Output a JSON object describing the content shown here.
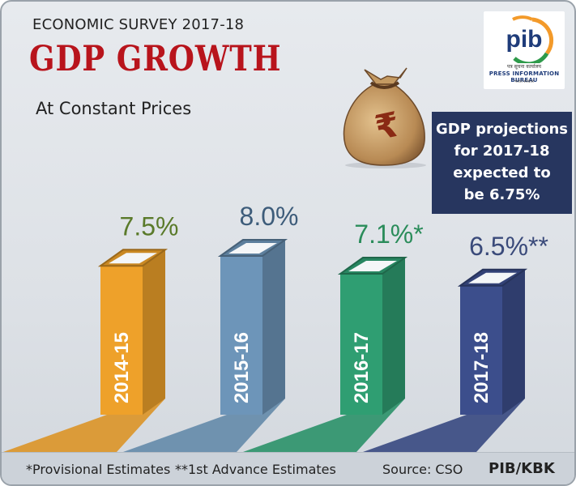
{
  "header": {
    "kicker": "ECONOMIC SURVEY 2017-18",
    "title": "GDP GROWTH",
    "subtitle": "At Constant Prices"
  },
  "logo": {
    "hindi_line": "पत्र सूचना कार्यालय",
    "name": "PRESS INFORMATION BUREAU",
    "gov_line": "भारत सरकार"
  },
  "callout": {
    "lines": [
      "GDP projections",
      "for 2017-18",
      "expected to",
      "be 6.75%"
    ]
  },
  "chart_data": {
    "type": "bar",
    "title": "GDP GROWTH",
    "subtitle": "At Constant Prices",
    "categories": [
      "2014-15",
      "2015-16",
      "2016-17",
      "2017-18"
    ],
    "values": [
      7.5,
      8.0,
      7.1,
      6.5
    ],
    "value_labels": [
      "7.5%",
      "8.0%",
      "7.1%",
      "6.5%"
    ],
    "value_markers": [
      "",
      "",
      "*",
      "**"
    ],
    "unit": "%",
    "ylim": [
      0,
      9
    ],
    "grid": false,
    "legend": "none",
    "colors": [
      "#eea12a",
      "#6d95b9",
      "#2f9e72",
      "#3c4e8c"
    ],
    "label_colors": [
      "#5a7a2a",
      "#3d5c7a",
      "#2a8c5a",
      "#3a4a7a"
    ]
  },
  "footer": {
    "footnote_provisional": "*Provisional Estimates",
    "footnote_advance": "**1st Advance Estimates",
    "source": "Source: CSO",
    "credit": "PIB/KBK"
  }
}
